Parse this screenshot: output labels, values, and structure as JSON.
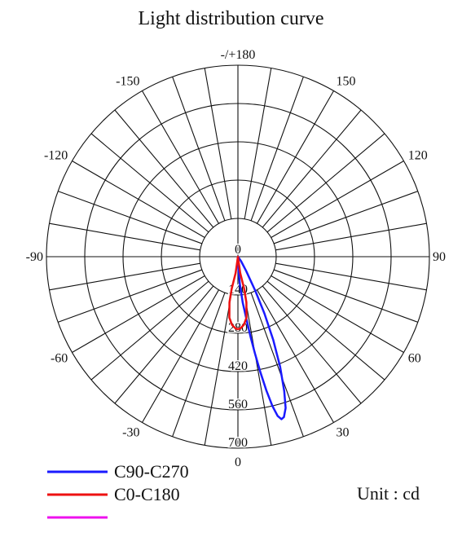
{
  "chart_data": {
    "type": "polar-line",
    "title": "Light distribution curve",
    "unit_label": "Unit : cd",
    "radial_range": [
      0,
      700
    ],
    "radial_ticks": [
      0,
      140,
      280,
      420,
      560,
      700
    ],
    "radial_tick_labels": [
      "0",
      "140",
      "280",
      "420",
      "560",
      "700"
    ],
    "angular_step_degrees": 10,
    "angle_labels": [
      {
        "angle": 0,
        "text": "0"
      },
      {
        "angle": 30,
        "text": "30"
      },
      {
        "angle": 60,
        "text": "60"
      },
      {
        "angle": 90,
        "text": "90"
      },
      {
        "angle": 120,
        "text": "120"
      },
      {
        "angle": 150,
        "text": "150"
      },
      {
        "angle": 180,
        "text": "-/+180"
      },
      {
        "angle": -150,
        "text": "-150"
      },
      {
        "angle": -120,
        "text": "-120"
      },
      {
        "angle": -90,
        "text": "-90"
      },
      {
        "angle": -60,
        "text": "-60"
      },
      {
        "angle": -30,
        "text": "-30"
      }
    ],
    "grid": true,
    "legend_position": "bottom-left",
    "series": [
      {
        "name": "C90-C270",
        "color": "#1a1aff",
        "points": [
          {
            "angle": 0,
            "value": 0
          },
          {
            "angle": 2,
            "value": 40
          },
          {
            "angle": 4,
            "value": 100
          },
          {
            "angle": 6,
            "value": 170
          },
          {
            "angle": 8,
            "value": 240
          },
          {
            "angle": 9,
            "value": 300
          },
          {
            "angle": 10,
            "value": 360
          },
          {
            "angle": 11,
            "value": 430
          },
          {
            "angle": 12,
            "value": 500
          },
          {
            "angle": 13,
            "value": 560
          },
          {
            "angle": 14,
            "value": 600
          },
          {
            "angle": 15,
            "value": 615
          },
          {
            "angle": 16,
            "value": 610
          },
          {
            "angle": 17.5,
            "value": 580
          },
          {
            "angle": 19,
            "value": 520
          },
          {
            "angle": 21,
            "value": 430
          },
          {
            "angle": 23,
            "value": 330
          },
          {
            "angle": 25,
            "value": 230
          },
          {
            "angle": 27,
            "value": 140
          },
          {
            "angle": 30,
            "value": 60
          },
          {
            "angle": 35,
            "value": 20
          },
          {
            "angle": 40,
            "value": 0
          }
        ]
      },
      {
        "name": "C0-C180",
        "color": "#ee1111",
        "points": [
          {
            "angle": 0,
            "value": 0
          },
          {
            "angle": -8,
            "value": 60
          },
          {
            "angle": -11,
            "value": 120
          },
          {
            "angle": -10.5,
            "value": 170
          },
          {
            "angle": -8,
            "value": 225
          },
          {
            "angle": -5,
            "value": 250
          },
          {
            "angle": -2,
            "value": 262
          },
          {
            "angle": 0,
            "value": 265
          },
          {
            "angle": 2,
            "value": 262
          },
          {
            "angle": 5,
            "value": 250
          },
          {
            "angle": 8,
            "value": 225
          },
          {
            "angle": 10.5,
            "value": 170
          },
          {
            "angle": 11,
            "value": 120
          },
          {
            "angle": 8,
            "value": 60
          },
          {
            "angle": 0,
            "value": 0
          }
        ]
      },
      {
        "name": "",
        "color": "#ee11ee",
        "points": []
      }
    ]
  }
}
